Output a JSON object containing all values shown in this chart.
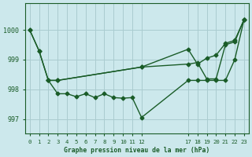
{
  "title": "Graphe pression niveau de la mer (hPa)",
  "bg_color": "#cce8ec",
  "grid_color": "#aaccd0",
  "line_color": "#1a5c28",
  "ylim": [
    996.5,
    1000.9
  ],
  "xlim": [
    -0.5,
    23.5
  ],
  "yticks": [
    997,
    998,
    999,
    1000
  ],
  "xtick_positions": [
    0,
    1,
    2,
    3,
    4,
    5,
    6,
    7,
    8,
    9,
    10,
    11,
    12,
    17,
    18,
    19,
    20,
    21,
    22,
    23
  ],
  "xtick_labels": [
    "0",
    "1",
    "2",
    "3",
    "4",
    "5",
    "6",
    "7",
    "8",
    "9",
    "10",
    "11",
    "12",
    "17",
    "18",
    "19",
    "20",
    "21",
    "22",
    "23"
  ],
  "series1_x": [
    0,
    1,
    2,
    3,
    12,
    17,
    18,
    19,
    20,
    21,
    22,
    23
  ],
  "series1_y": [
    1000.0,
    999.3,
    998.3,
    998.3,
    998.75,
    998.85,
    998.9,
    998.35,
    998.35,
    999.5,
    999.6,
    1000.35
  ],
  "series2_x": [
    0,
    1,
    2,
    3,
    4,
    5,
    6,
    7,
    8,
    9,
    10,
    11,
    12,
    17,
    18,
    19,
    20,
    21,
    22,
    23
  ],
  "series2_y": [
    1000.0,
    999.3,
    998.3,
    997.85,
    997.85,
    997.75,
    997.85,
    997.72,
    997.85,
    997.72,
    997.7,
    997.72,
    997.05,
    998.3,
    998.3,
    998.3,
    998.3,
    998.3,
    999.0,
    1000.35
  ],
  "series3_x": [
    2,
    3,
    12,
    17,
    18,
    19,
    20,
    21,
    22,
    23
  ],
  "series3_y": [
    998.3,
    998.3,
    998.75,
    999.35,
    998.85,
    999.05,
    999.15,
    999.55,
    999.65,
    1000.35
  ]
}
